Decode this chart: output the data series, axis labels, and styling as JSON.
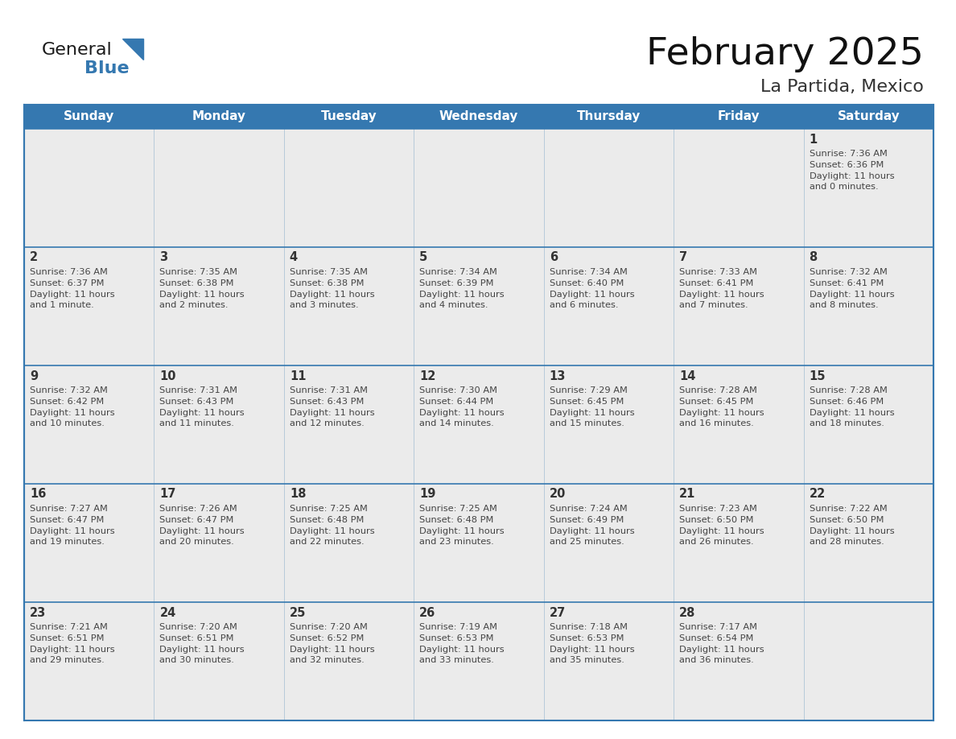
{
  "title": "February 2025",
  "subtitle": "La Partida, Mexico",
  "days_of_week": [
    "Sunday",
    "Monday",
    "Tuesday",
    "Wednesday",
    "Thursday",
    "Friday",
    "Saturday"
  ],
  "header_bg_color": "#3578b0",
  "header_text_color": "#ffffff",
  "cell_bg_color": "#ebebeb",
  "day_number_color": "#333333",
  "text_color": "#444444",
  "border_color": "#3578b0",
  "logo_general_color": "#1a1a1a",
  "logo_blue_color": "#3578b0",
  "logo_triangle_color": "#3578b0",
  "calendar_data": [
    [
      null,
      null,
      null,
      null,
      null,
      null,
      {
        "day": 1,
        "sunrise": "7:36 AM",
        "sunset": "6:36 PM",
        "daylight": "11 hours and 0 minutes."
      }
    ],
    [
      {
        "day": 2,
        "sunrise": "7:36 AM",
        "sunset": "6:37 PM",
        "daylight": "11 hours and 1 minute."
      },
      {
        "day": 3,
        "sunrise": "7:35 AM",
        "sunset": "6:38 PM",
        "daylight": "11 hours and 2 minutes."
      },
      {
        "day": 4,
        "sunrise": "7:35 AM",
        "sunset": "6:38 PM",
        "daylight": "11 hours and 3 minutes."
      },
      {
        "day": 5,
        "sunrise": "7:34 AM",
        "sunset": "6:39 PM",
        "daylight": "11 hours and 4 minutes."
      },
      {
        "day": 6,
        "sunrise": "7:34 AM",
        "sunset": "6:40 PM",
        "daylight": "11 hours and 6 minutes."
      },
      {
        "day": 7,
        "sunrise": "7:33 AM",
        "sunset": "6:41 PM",
        "daylight": "11 hours and 7 minutes."
      },
      {
        "day": 8,
        "sunrise": "7:32 AM",
        "sunset": "6:41 PM",
        "daylight": "11 hours and 8 minutes."
      }
    ],
    [
      {
        "day": 9,
        "sunrise": "7:32 AM",
        "sunset": "6:42 PM",
        "daylight": "11 hours and 10 minutes."
      },
      {
        "day": 10,
        "sunrise": "7:31 AM",
        "sunset": "6:43 PM",
        "daylight": "11 hours and 11 minutes."
      },
      {
        "day": 11,
        "sunrise": "7:31 AM",
        "sunset": "6:43 PM",
        "daylight": "11 hours and 12 minutes."
      },
      {
        "day": 12,
        "sunrise": "7:30 AM",
        "sunset": "6:44 PM",
        "daylight": "11 hours and 14 minutes."
      },
      {
        "day": 13,
        "sunrise": "7:29 AM",
        "sunset": "6:45 PM",
        "daylight": "11 hours and 15 minutes."
      },
      {
        "day": 14,
        "sunrise": "7:28 AM",
        "sunset": "6:45 PM",
        "daylight": "11 hours and 16 minutes."
      },
      {
        "day": 15,
        "sunrise": "7:28 AM",
        "sunset": "6:46 PM",
        "daylight": "11 hours and 18 minutes."
      }
    ],
    [
      {
        "day": 16,
        "sunrise": "7:27 AM",
        "sunset": "6:47 PM",
        "daylight": "11 hours and 19 minutes."
      },
      {
        "day": 17,
        "sunrise": "7:26 AM",
        "sunset": "6:47 PM",
        "daylight": "11 hours and 20 minutes."
      },
      {
        "day": 18,
        "sunrise": "7:25 AM",
        "sunset": "6:48 PM",
        "daylight": "11 hours and 22 minutes."
      },
      {
        "day": 19,
        "sunrise": "7:25 AM",
        "sunset": "6:48 PM",
        "daylight": "11 hours and 23 minutes."
      },
      {
        "day": 20,
        "sunrise": "7:24 AM",
        "sunset": "6:49 PM",
        "daylight": "11 hours and 25 minutes."
      },
      {
        "day": 21,
        "sunrise": "7:23 AM",
        "sunset": "6:50 PM",
        "daylight": "11 hours and 26 minutes."
      },
      {
        "day": 22,
        "sunrise": "7:22 AM",
        "sunset": "6:50 PM",
        "daylight": "11 hours and 28 minutes."
      }
    ],
    [
      {
        "day": 23,
        "sunrise": "7:21 AM",
        "sunset": "6:51 PM",
        "daylight": "11 hours and 29 minutes."
      },
      {
        "day": 24,
        "sunrise": "7:20 AM",
        "sunset": "6:51 PM",
        "daylight": "11 hours and 30 minutes."
      },
      {
        "day": 25,
        "sunrise": "7:20 AM",
        "sunset": "6:52 PM",
        "daylight": "11 hours and 32 minutes."
      },
      {
        "day": 26,
        "sunrise": "7:19 AM",
        "sunset": "6:53 PM",
        "daylight": "11 hours and 33 minutes."
      },
      {
        "day": 27,
        "sunrise": "7:18 AM",
        "sunset": "6:53 PM",
        "daylight": "11 hours and 35 minutes."
      },
      {
        "day": 28,
        "sunrise": "7:17 AM",
        "sunset": "6:54 PM",
        "daylight": "11 hours and 36 minutes."
      },
      null
    ]
  ]
}
